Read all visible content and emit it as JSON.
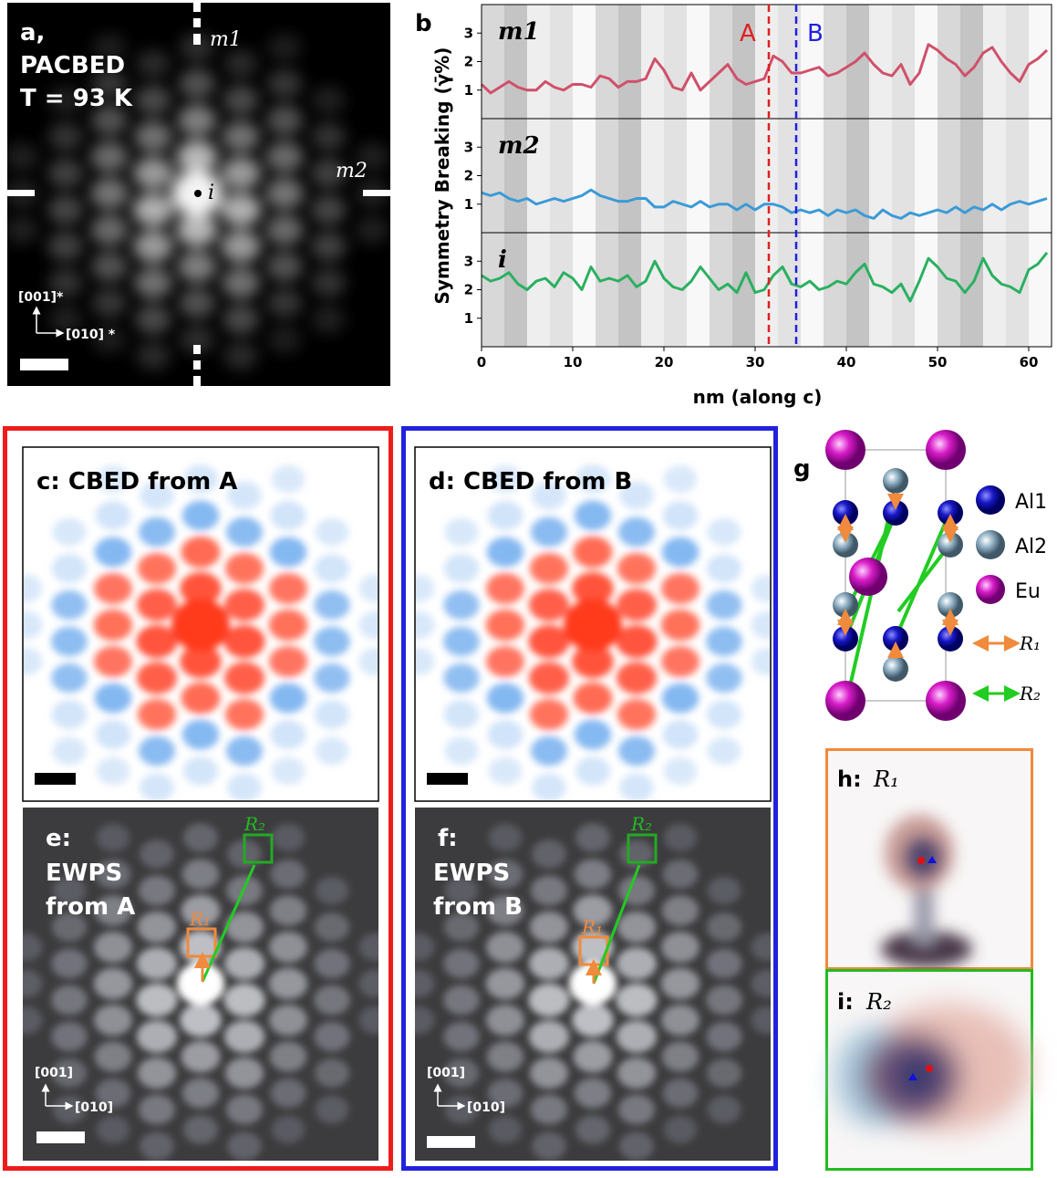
{
  "panels": {
    "a": {
      "label": "a,",
      "lines": [
        "PACBED",
        "T = 93 K"
      ],
      "mirror_1": "m1",
      "mirror_2": "m2",
      "inversion": "i",
      "axis_y": "[001]*",
      "axis_x": "[010] *"
    },
    "c": {
      "title": "c: CBED from A"
    },
    "d": {
      "title": "d: CBED from B"
    },
    "e": {
      "lines": [
        "e:",
        "EWPS",
        "from A"
      ],
      "r1": "R₁",
      "r2": "R₂",
      "axis_y": "[001]",
      "axis_x": "[010]"
    },
    "f": {
      "lines": [
        "f:",
        "EWPS",
        "from B"
      ],
      "r1": "R₁",
      "r2": "R₂",
      "axis_y": "[001]",
      "axis_x": "[010]"
    },
    "g": {
      "label": "g",
      "legend": [
        "Al1",
        "Al2",
        "Eu"
      ],
      "vectors": [
        "R₁",
        "R₂"
      ]
    },
    "h": {
      "label": "h:",
      "vector": "R₁"
    },
    "i": {
      "label": "i:",
      "vector": "R₂"
    }
  },
  "chart_data": {
    "type": "line",
    "panel_label": "b",
    "xlabel": "nm (along c)",
    "ylabel": "Symmetry Breaking (γ̄%)",
    "x": [
      0,
      1,
      2,
      3,
      4,
      5,
      6,
      7,
      8,
      9,
      10,
      11,
      12,
      13,
      14,
      15,
      16,
      17,
      18,
      19,
      20,
      21,
      22,
      23,
      24,
      25,
      26,
      27,
      28,
      29,
      30,
      31,
      32,
      33,
      34,
      35,
      36,
      37,
      38,
      39,
      40,
      41,
      42,
      43,
      44,
      45,
      46,
      47,
      48,
      49,
      50,
      51,
      52,
      53,
      54,
      55,
      56,
      57,
      58,
      59,
      60,
      61,
      62
    ],
    "xlim": [
      0,
      62.5
    ],
    "xticks": [
      0,
      10,
      20,
      30,
      40,
      50,
      60
    ],
    "ylim": [
      0,
      4
    ],
    "yticks": [
      1,
      2,
      3
    ],
    "series": [
      {
        "name": "m1",
        "color": "#d0506a",
        "values": [
          1.2,
          0.9,
          1.1,
          1.3,
          1.1,
          1.0,
          1.0,
          1.3,
          1.1,
          1.0,
          1.2,
          1.2,
          1.1,
          1.5,
          1.4,
          1.1,
          1.3,
          1.3,
          1.4,
          2.1,
          1.7,
          1.1,
          1.0,
          1.6,
          1.0,
          1.3,
          1.6,
          1.9,
          1.4,
          1.2,
          1.3,
          1.4,
          2.2,
          2.0,
          1.6,
          1.6,
          1.7,
          1.8,
          1.5,
          1.6,
          1.8,
          2.0,
          2.3,
          1.9,
          1.6,
          1.5,
          1.9,
          1.2,
          1.6,
          2.6,
          2.4,
          2.1,
          1.9,
          1.5,
          1.8,
          2.3,
          2.5,
          2.0,
          1.6,
          1.3,
          1.9,
          2.1,
          2.4
        ]
      },
      {
        "name": "m2",
        "color": "#3a9ad8",
        "values": [
          1.4,
          1.3,
          1.4,
          1.2,
          1.1,
          1.2,
          1.0,
          1.1,
          1.2,
          1.1,
          1.2,
          1.3,
          1.5,
          1.3,
          1.2,
          1.1,
          1.1,
          1.2,
          1.2,
          0.9,
          0.9,
          1.1,
          1.0,
          0.9,
          1.1,
          0.9,
          1.0,
          1.0,
          0.8,
          1.0,
          0.8,
          1.0,
          1.0,
          0.9,
          0.7,
          0.8,
          0.7,
          0.8,
          0.6,
          0.8,
          0.7,
          0.8,
          0.6,
          0.5,
          0.8,
          0.6,
          0.5,
          0.7,
          0.6,
          0.7,
          0.8,
          0.7,
          0.9,
          0.7,
          0.9,
          0.8,
          1.0,
          0.8,
          1.0,
          1.1,
          1.0,
          1.1,
          1.2
        ]
      },
      {
        "name": "i",
        "color": "#2ab060",
        "values": [
          2.5,
          2.3,
          2.4,
          2.6,
          2.2,
          2.0,
          2.3,
          2.4,
          2.1,
          2.6,
          2.4,
          2.0,
          2.8,
          2.3,
          2.4,
          2.3,
          2.5,
          2.1,
          2.3,
          3.0,
          2.4,
          2.1,
          2.0,
          2.3,
          2.8,
          2.4,
          2.0,
          2.2,
          1.9,
          2.6,
          1.9,
          2.0,
          2.5,
          2.8,
          2.2,
          2.1,
          2.3,
          2.0,
          2.1,
          2.3,
          2.2,
          2.6,
          2.9,
          2.2,
          2.1,
          1.9,
          2.2,
          1.6,
          2.3,
          3.1,
          2.8,
          2.4,
          2.3,
          1.9,
          2.3,
          3.1,
          2.5,
          2.2,
          2.1,
          1.9,
          2.7,
          2.9,
          3.3
        ]
      }
    ],
    "markers": [
      {
        "label": "A",
        "x": 31.5,
        "color": "#e02020"
      },
      {
        "label": "B",
        "x": 34.5,
        "color": "#2020e0"
      }
    ]
  }
}
